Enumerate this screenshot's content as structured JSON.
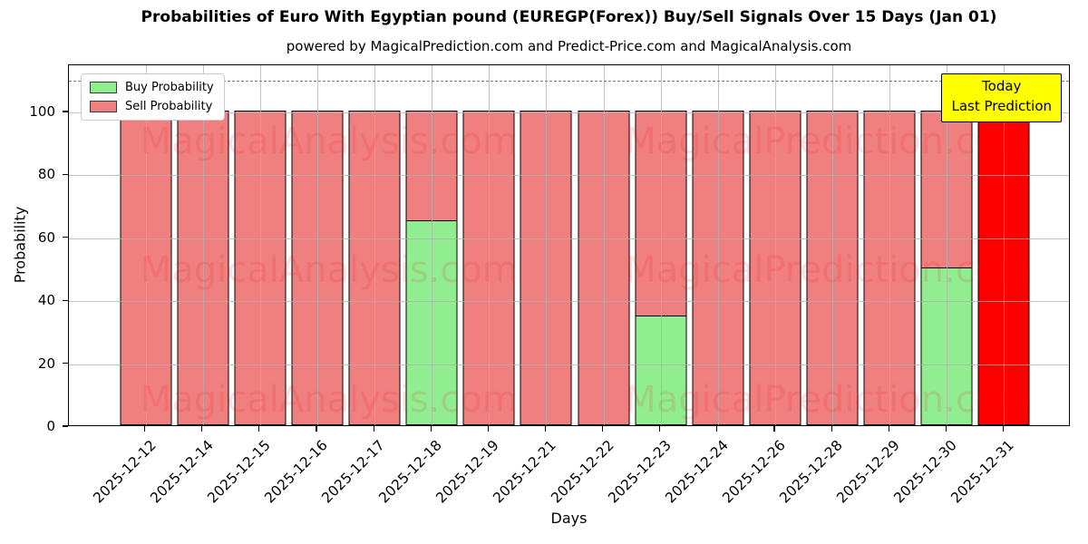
{
  "figure": {
    "title": "Probabilities of Euro With Egyptian pound (EUREGP(Forex)) Buy/Sell Signals Over 15 Days (Jan 01)",
    "subtitle": "powered by MagicalPrediction.com and Predict-Price.com and MagicalAnalysis.com"
  },
  "chart_data": {
    "type": "bar",
    "stacked": true,
    "title": "Probabilities of Euro With Egyptian pound (EUREGP(Forex)) Buy/Sell Signals Over 15 Days (Jan 01)",
    "xlabel": "Days",
    "ylabel": "Probability",
    "ylim": [
      0,
      115
    ],
    "yticks": [
      0,
      20,
      40,
      60,
      80,
      100
    ],
    "grid": true,
    "dashed_reference_line_y": 110,
    "legend_position": "upper left",
    "categories": [
      "2025-12-12",
      "2025-12-14",
      "2025-12-15",
      "2025-12-16",
      "2025-12-17",
      "2025-12-18",
      "2025-12-19",
      "2025-12-21",
      "2025-12-22",
      "2025-12-23",
      "2025-12-24",
      "2025-12-26",
      "2025-12-28",
      "2025-12-29",
      "2025-12-30",
      "2025-12-31"
    ],
    "series": [
      {
        "name": "Buy Probability",
        "color": "#90ee90",
        "values": [
          0,
          0,
          0,
          0,
          0,
          65,
          0,
          0,
          0,
          34.5,
          0,
          0,
          0,
          0,
          50,
          0
        ]
      },
      {
        "name": "Sell Probability",
        "color": "#f08080",
        "values": [
          100,
          100,
          100,
          100,
          100,
          35,
          100,
          100,
          100,
          65.5,
          100,
          100,
          100,
          100,
          50,
          100
        ]
      }
    ],
    "today_bar": {
      "index": 15,
      "date": "2025-12-31",
      "color": "#ff0000",
      "value": 100
    }
  },
  "annotation": {
    "line1": "Today",
    "line2": "Last Prediction",
    "bg_color": "#ffff00"
  },
  "watermarks": {
    "left": "MagicalAnalysis.com",
    "right": "MagicalPrediction.com"
  },
  "colors": {
    "buy": "#90ee90",
    "sell": "#f08080",
    "today": "#ff0000",
    "grid": "#b0b0b0",
    "annotation_bg": "#ffff00"
  }
}
